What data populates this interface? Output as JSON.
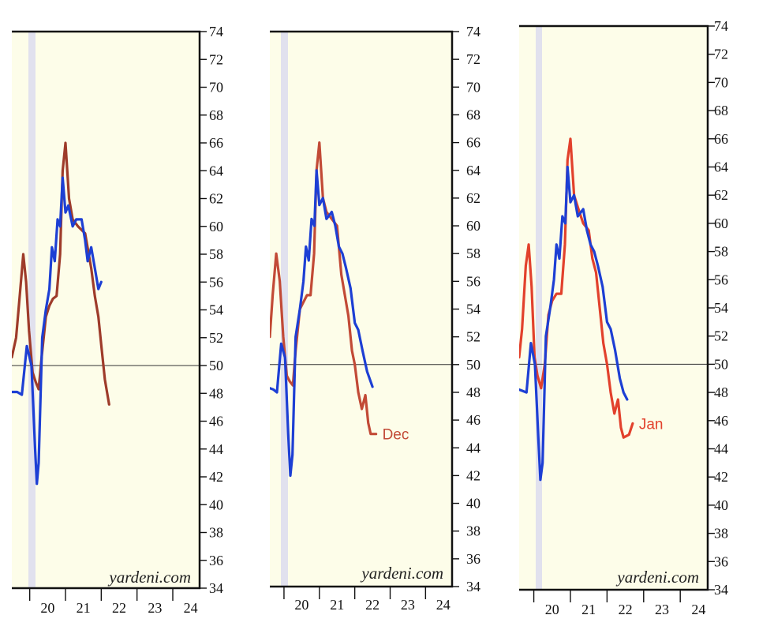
{
  "chart_data": [
    {
      "type": "line",
      "panel": 1,
      "x_unit": "year",
      "xlim": [
        2019.5,
        2024.75
      ],
      "ylim": [
        34,
        74
      ],
      "y_ticks": [
        "34",
        "36",
        "38",
        "40",
        "42",
        "44",
        "46",
        "48",
        "50",
        "52",
        "54",
        "56",
        "58",
        "60",
        "62",
        "64",
        "66",
        "68",
        "70",
        "72",
        "74"
      ],
      "x_tick_labels": [
        "20",
        "21",
        "22",
        "23",
        "24"
      ],
      "reference_line": 50,
      "recession_shading": [
        2020.13,
        2020.33
      ],
      "watermark": "yardeni.com",
      "series": [
        {
          "color": "#9e3b2a",
          "points": [
            [
              2019.5,
              50.6
            ],
            [
              2019.62,
              52.0
            ],
            [
              2019.72,
              55.0
            ],
            [
              2019.82,
              58.0
            ],
            [
              2019.9,
              56.0
            ],
            [
              2019.98,
              52.5
            ],
            [
              2020.08,
              49.5
            ],
            [
              2020.17,
              48.8
            ],
            [
              2020.25,
              48.3
            ],
            [
              2020.33,
              50.5
            ],
            [
              2020.45,
              53.5
            ],
            [
              2020.55,
              54.3
            ],
            [
              2020.65,
              54.8
            ],
            [
              2020.75,
              55.0
            ],
            [
              2020.85,
              58.0
            ],
            [
              2020.92,
              64.0
            ],
            [
              2021.0,
              66.0
            ],
            [
              2021.1,
              62.0
            ],
            [
              2021.2,
              60.5
            ],
            [
              2021.35,
              60.0
            ],
            [
              2021.55,
              59.5
            ],
            [
              2021.72,
              57.0
            ],
            [
              2021.82,
              55.0
            ],
            [
              2021.92,
              53.5
            ],
            [
              2022.0,
              51.5
            ],
            [
              2022.1,
              49.0
            ],
            [
              2022.22,
              47.2
            ]
          ]
        },
        {
          "color": "#1d3fd4",
          "points": [
            [
              2019.5,
              48.1
            ],
            [
              2019.65,
              48.1
            ],
            [
              2019.78,
              47.9
            ],
            [
              2019.92,
              51.4
            ],
            [
              2020.05,
              50.0
            ],
            [
              2020.15,
              44.0
            ],
            [
              2020.2,
              41.5
            ],
            [
              2020.25,
              43.0
            ],
            [
              2020.35,
              52.0
            ],
            [
              2020.45,
              54.0
            ],
            [
              2020.55,
              55.5
            ],
            [
              2020.62,
              58.5
            ],
            [
              2020.7,
              57.5
            ],
            [
              2020.78,
              60.5
            ],
            [
              2020.85,
              60.0
            ],
            [
              2020.92,
              63.5
            ],
            [
              2021.0,
              61.0
            ],
            [
              2021.08,
              61.5
            ],
            [
              2021.2,
              60.0
            ],
            [
              2021.3,
              60.5
            ],
            [
              2021.45,
              60.5
            ],
            [
              2021.55,
              59.0
            ],
            [
              2021.62,
              57.5
            ],
            [
              2021.72,
              58.5
            ],
            [
              2021.82,
              57.0
            ],
            [
              2021.92,
              55.5
            ],
            [
              2022.0,
              56.0
            ]
          ]
        }
      ]
    },
    {
      "type": "line",
      "panel": 2,
      "x_unit": "year",
      "xlim": [
        2019.6,
        2024.75
      ],
      "ylim": [
        34,
        74
      ],
      "y_ticks": [
        "34",
        "36",
        "38",
        "40",
        "42",
        "44",
        "46",
        "48",
        "50",
        "52",
        "54",
        "56",
        "58",
        "60",
        "62",
        "64",
        "66",
        "68",
        "70",
        "72",
        "74"
      ],
      "x_tick_labels": [
        "20",
        "21",
        "22",
        "23",
        "24"
      ],
      "reference_line": 50,
      "recession_shading": [
        2020.13,
        2020.33
      ],
      "watermark": "yardeni.com",
      "end_label": {
        "text": "Dec",
        "series": 0
      },
      "series": [
        {
          "color": "#c24a36",
          "points": [
            [
              2019.6,
              52.0
            ],
            [
              2019.68,
              55.0
            ],
            [
              2019.78,
              58.0
            ],
            [
              2019.88,
              56.0
            ],
            [
              2019.98,
              52.0
            ],
            [
              2020.08,
              49.2
            ],
            [
              2020.16,
              48.8
            ],
            [
              2020.25,
              48.5
            ],
            [
              2020.33,
              51.0
            ],
            [
              2020.45,
              54.0
            ],
            [
              2020.55,
              54.5
            ],
            [
              2020.65,
              55.0
            ],
            [
              2020.75,
              55.0
            ],
            [
              2020.85,
              58.0
            ],
            [
              2020.92,
              64.0
            ],
            [
              2021.0,
              66.0
            ],
            [
              2021.1,
              62.0
            ],
            [
              2021.2,
              61.0
            ],
            [
              2021.35,
              60.5
            ],
            [
              2021.5,
              60.0
            ],
            [
              2021.62,
              56.5
            ],
            [
              2021.72,
              55.0
            ],
            [
              2021.82,
              53.5
            ],
            [
              2021.92,
              51.0
            ],
            [
              2022.0,
              50.0
            ],
            [
              2022.1,
              48.0
            ],
            [
              2022.2,
              46.8
            ],
            [
              2022.3,
              47.8
            ],
            [
              2022.38,
              45.8
            ],
            [
              2022.45,
              45.0
            ],
            [
              2022.6,
              45.0
            ]
          ]
        },
        {
          "color": "#1d3fd4",
          "points": [
            [
              2019.6,
              48.3
            ],
            [
              2019.7,
              48.2
            ],
            [
              2019.8,
              48.0
            ],
            [
              2019.92,
              51.5
            ],
            [
              2020.03,
              50.5
            ],
            [
              2020.12,
              45.0
            ],
            [
              2020.18,
              42.0
            ],
            [
              2020.24,
              43.5
            ],
            [
              2020.33,
              52.0
            ],
            [
              2020.45,
              54.0
            ],
            [
              2020.55,
              56.0
            ],
            [
              2020.62,
              58.5
            ],
            [
              2020.7,
              57.5
            ],
            [
              2020.78,
              60.5
            ],
            [
              2020.86,
              60.0
            ],
            [
              2020.92,
              64.0
            ],
            [
              2021.0,
              61.5
            ],
            [
              2021.1,
              62.0
            ],
            [
              2021.2,
              60.5
            ],
            [
              2021.35,
              61.0
            ],
            [
              2021.45,
              60.0
            ],
            [
              2021.55,
              58.5
            ],
            [
              2021.65,
              58.0
            ],
            [
              2021.75,
              57.0
            ],
            [
              2021.88,
              55.5
            ],
            [
              2022.0,
              53.0
            ],
            [
              2022.1,
              52.5
            ],
            [
              2022.22,
              51.0
            ],
            [
              2022.35,
              49.5
            ],
            [
              2022.5,
              48.4
            ]
          ]
        }
      ]
    },
    {
      "type": "line",
      "panel": 3,
      "x_unit": "year",
      "xlim": [
        2019.6,
        2024.75
      ],
      "ylim": [
        34,
        74
      ],
      "y_ticks": [
        "34",
        "36",
        "38",
        "40",
        "42",
        "44",
        "46",
        "48",
        "50",
        "52",
        "54",
        "56",
        "58",
        "60",
        "62",
        "64",
        "66",
        "68",
        "70",
        "72",
        "74"
      ],
      "x_tick_labels": [
        "20",
        "21",
        "22",
        "23",
        "24"
      ],
      "reference_line": 50,
      "recession_shading": [
        2020.13,
        2020.33
      ],
      "watermark": "yardeni.com",
      "end_label": {
        "text": "Jan",
        "series": 0
      },
      "series": [
        {
          "color": "#e2412c",
          "points": [
            [
              2019.6,
              50.5
            ],
            [
              2019.68,
              52.5
            ],
            [
              2019.78,
              57.0
            ],
            [
              2019.86,
              58.5
            ],
            [
              2019.94,
              55.5
            ],
            [
              2020.02,
              50.5
            ],
            [
              2020.1,
              49.2
            ],
            [
              2020.2,
              48.3
            ],
            [
              2020.3,
              50.0
            ],
            [
              2020.4,
              53.5
            ],
            [
              2020.5,
              54.5
            ],
            [
              2020.62,
              55.0
            ],
            [
              2020.75,
              55.0
            ],
            [
              2020.85,
              58.5
            ],
            [
              2020.92,
              64.5
            ],
            [
              2021.0,
              66.0
            ],
            [
              2021.1,
              62.0
            ],
            [
              2021.22,
              61.0
            ],
            [
              2021.35,
              60.0
            ],
            [
              2021.5,
              59.5
            ],
            [
              2021.6,
              57.5
            ],
            [
              2021.7,
              56.5
            ],
            [
              2021.8,
              54.0
            ],
            [
              2021.9,
              51.5
            ],
            [
              2022.0,
              50.0
            ],
            [
              2022.1,
              48.0
            ],
            [
              2022.2,
              46.5
            ],
            [
              2022.3,
              47.5
            ],
            [
              2022.38,
              45.5
            ],
            [
              2022.45,
              44.8
            ],
            [
              2022.6,
              45.0
            ],
            [
              2022.7,
              45.8
            ]
          ]
        },
        {
          "color": "#1d3fd4",
          "points": [
            [
              2019.6,
              48.2
            ],
            [
              2019.7,
              48.1
            ],
            [
              2019.8,
              48.0
            ],
            [
              2019.92,
              51.5
            ],
            [
              2020.03,
              50.0
            ],
            [
              2020.12,
              45.0
            ],
            [
              2020.18,
              41.8
            ],
            [
              2020.24,
              43.0
            ],
            [
              2020.33,
              52.0
            ],
            [
              2020.45,
              54.0
            ],
            [
              2020.55,
              56.0
            ],
            [
              2020.62,
              58.5
            ],
            [
              2020.7,
              57.5
            ],
            [
              2020.78,
              60.5
            ],
            [
              2020.86,
              60.0
            ],
            [
              2020.92,
              64.0
            ],
            [
              2021.0,
              61.5
            ],
            [
              2021.1,
              62.0
            ],
            [
              2021.2,
              60.5
            ],
            [
              2021.35,
              61.0
            ],
            [
              2021.45,
              59.5
            ],
            [
              2021.55,
              58.5
            ],
            [
              2021.65,
              58.0
            ],
            [
              2021.75,
              57.0
            ],
            [
              2021.88,
              55.5
            ],
            [
              2022.0,
              53.0
            ],
            [
              2022.1,
              52.5
            ],
            [
              2022.22,
              51.0
            ],
            [
              2022.35,
              49.0
            ],
            [
              2022.45,
              48.0
            ],
            [
              2022.55,
              47.5
            ]
          ]
        }
      ]
    }
  ]
}
